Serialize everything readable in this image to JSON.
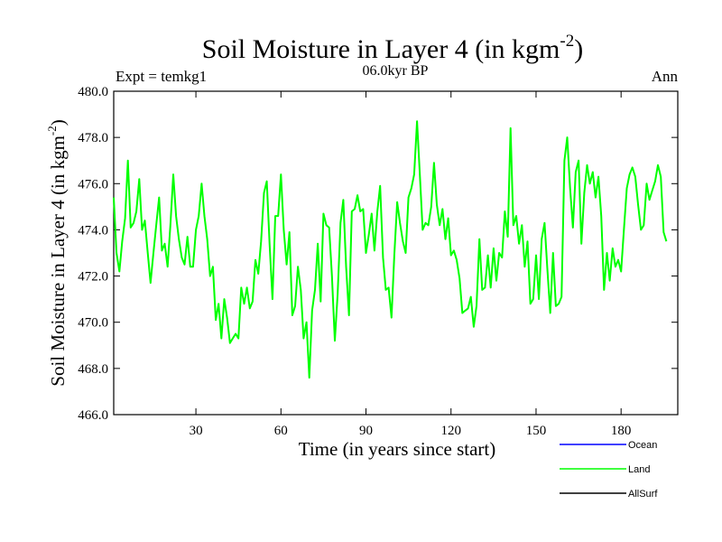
{
  "chart_data": {
    "type": "line",
    "title": "Soil Moisture in Layer 4 (in kgm",
    "title_sup": "-2",
    "title_close": ")",
    "subtitle": "06.0kyr BP",
    "left_label": "Expt = temkg1",
    "right_label": "Ann",
    "xlabel": "Time (in years since start)",
    "ylabel": "Soil Moisture in Layer 4 (in kgm",
    "ylabel_sup": "-2",
    "ylabel_close": ")",
    "xlim": [
      1,
      200
    ],
    "ylim": [
      466.0,
      480.0
    ],
    "xticks": [
      30,
      60,
      90,
      120,
      150,
      180
    ],
    "xtick_labels": [
      "30",
      "60",
      "90",
      "120",
      "150",
      "180"
    ],
    "yticks": [
      466,
      468,
      470,
      472,
      474,
      476,
      478,
      480
    ],
    "ytick_labels": [
      "466.0",
      "468.0",
      "470.0",
      "472.0",
      "474.0",
      "476.0",
      "478.0",
      "480.0"
    ],
    "legend": [
      {
        "name": "Ocean",
        "color": "#0000ff"
      },
      {
        "name": "Land",
        "color": "#00ff00"
      },
      {
        "name": "AllSurf",
        "color": "#000000"
      }
    ],
    "series": [
      {
        "name": "Land",
        "color": "#00ff00",
        "x_start": 1,
        "values": [
          475.4,
          473.0,
          472.2,
          473.5,
          474.5,
          477.0,
          474.1,
          474.3,
          474.8,
          476.2,
          474.0,
          474.4,
          473.0,
          471.7,
          473.0,
          474.2,
          475.4,
          473.1,
          473.4,
          472.4,
          474.2,
          476.4,
          474.6,
          473.6,
          472.8,
          472.5,
          473.7,
          472.4,
          472.4,
          474.0,
          474.6,
          476.0,
          474.6,
          473.6,
          472.0,
          472.4,
          470.1,
          470.8,
          469.3,
          471.0,
          470.2,
          469.1,
          469.3,
          469.5,
          469.3,
          471.5,
          470.8,
          471.5,
          470.6,
          470.9,
          472.7,
          472.1,
          473.5,
          475.6,
          476.1,
          473.4,
          471.0,
          474.6,
          474.6,
          476.4,
          474.0,
          472.5,
          473.9,
          470.3,
          470.7,
          472.4,
          471.4,
          469.3,
          470.0,
          467.6,
          470.5,
          471.4,
          473.4,
          470.9,
          474.7,
          474.2,
          474.1,
          472.0,
          469.2,
          471.2,
          474.3,
          475.3,
          472.4,
          470.3,
          474.8,
          474.9,
          475.5,
          474.8,
          474.9,
          473.0,
          473.8,
          474.7,
          473.1,
          474.8,
          475.9,
          472.8,
          471.4,
          471.5,
          470.2,
          472.9,
          475.2,
          474.3,
          473.5,
          473.0,
          475.4,
          475.8,
          476.4,
          478.7,
          476.4,
          474.0,
          474.3,
          474.2,
          475.0,
          476.9,
          475.1,
          474.2,
          474.9,
          473.6,
          474.5,
          472.9,
          473.1,
          472.7,
          471.9,
          470.4,
          470.5,
          470.6,
          471.1,
          469.8,
          470.7,
          473.6,
          471.4,
          471.5,
          472.9,
          471.5,
          473.2,
          471.8,
          473.0,
          472.8,
          474.8,
          473.7,
          478.4,
          474.2,
          474.6,
          473.4,
          474.2,
          472.4,
          473.5,
          470.8,
          471.0,
          472.9,
          471.0,
          473.6,
          474.3,
          472.3,
          470.4,
          473.0,
          470.7,
          470.8,
          471.1,
          477.0,
          478.0,
          475.8,
          474.1,
          476.5,
          477.0,
          473.4,
          475.6,
          476.8,
          476.0,
          476.5,
          475.4,
          476.3,
          474.6,
          471.4,
          473.0,
          471.8,
          473.2,
          472.4,
          472.7,
          472.2,
          474.0,
          475.8,
          476.4,
          476.7,
          476.3,
          475.1,
          474.0,
          474.2,
          476.0,
          475.3,
          475.7,
          476.1,
          476.8,
          476.3,
          473.9,
          473.5
        ]
      }
    ]
  }
}
